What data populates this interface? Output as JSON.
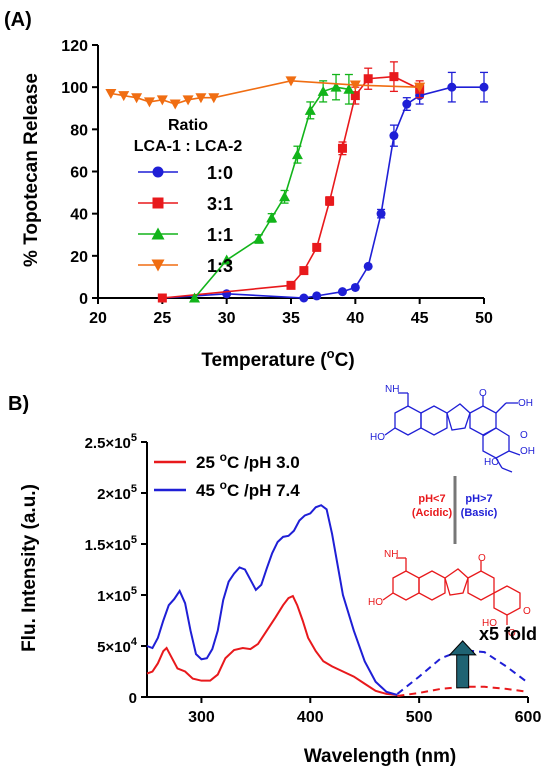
{
  "chart_data": [
    {
      "panel_label": "(A)",
      "type": "line",
      "xlabel": "Temperature (",
      "xlabel_unit_sup": "o",
      "xlabel_unit_end": "C)",
      "ylabel": "% Topotecan Release",
      "xlim": [
        20,
        50
      ],
      "ylim": [
        0,
        120
      ],
      "xticks": [
        20,
        25,
        30,
        35,
        40,
        45,
        50
      ],
      "yticks": [
        0,
        20,
        40,
        60,
        80,
        100,
        120
      ],
      "legend_title_1": "Ratio",
      "legend_title_2": "LCA-1 : LCA-2",
      "series": [
        {
          "name": "1:0",
          "color": "#1f1fd6",
          "marker": "circle",
          "x": [
            25,
            30,
            36,
            37,
            39,
            40,
            41,
            42,
            43,
            44,
            45,
            47.5,
            50
          ],
          "y": [
            0,
            2,
            0,
            1,
            3,
            5,
            15,
            40,
            77,
            92,
            96,
            100,
            100
          ],
          "err": [
            0,
            0,
            0,
            0,
            0,
            0,
            0,
            2,
            5,
            3,
            4,
            7,
            7
          ]
        },
        {
          "name": "3:1",
          "color": "#e8191c",
          "marker": "square",
          "x": [
            25,
            35,
            36,
            37,
            38,
            39,
            40,
            41,
            43,
            45
          ],
          "y": [
            0,
            6,
            13,
            24,
            46,
            71,
            96,
            104,
            105,
            99
          ],
          "err": [
            0,
            0,
            0,
            0,
            2,
            3,
            4,
            5,
            7,
            4
          ]
        },
        {
          "name": "1:1",
          "color": "#12b41a",
          "marker": "triangle-up",
          "x": [
            27.5,
            30,
            32.5,
            33.5,
            34.5,
            35.5,
            36.5,
            37.5,
            38.5,
            39.5
          ],
          "y": [
            0,
            18,
            28,
            38,
            48,
            68,
            89,
            98,
            100,
            99
          ],
          "err": [
            0,
            0,
            2,
            2,
            3,
            4,
            4,
            5,
            6,
            7
          ]
        },
        {
          "name": "1:3",
          "color": "#f06d12",
          "marker": "triangle-down",
          "x": [
            21,
            22,
            23,
            24,
            25,
            26,
            27,
            28,
            29,
            35,
            40,
            45
          ],
          "y": [
            97,
            96,
            95,
            93,
            94,
            92,
            94,
            95,
            95,
            103,
            101,
            100
          ],
          "err": [
            0,
            0,
            0,
            0,
            0,
            0,
            0,
            0,
            0,
            0,
            0,
            0
          ]
        }
      ]
    },
    {
      "panel_label": "B)",
      "type": "line",
      "xlabel": "Wavelength (nm)",
      "ylabel": "Flu. Intensity (a.u.)",
      "xlim": [
        250,
        600
      ],
      "ylim": [
        0,
        250000
      ],
      "xticks": [
        300,
        400,
        500,
        600
      ],
      "yticks": [
        0,
        50000,
        100000,
        150000,
        200000,
        250000
      ],
      "ytick_labels": [
        {
          "mant": "0",
          "exp": ""
        },
        {
          "mant": "5×10",
          "exp": "4"
        },
        {
          "mant": "1×10",
          "exp": "5"
        },
        {
          "mant": "1.5×10",
          "exp": "5"
        },
        {
          "mant": "2×10",
          "exp": "5"
        },
        {
          "mant": "2.5×10",
          "exp": "5"
        }
      ],
      "series": [
        {
          "name_pre": "25 ",
          "name_sup": "o",
          "name_post": "C /pH 3.0",
          "color": "#e8191c",
          "x": [
            250,
            255,
            260,
            265,
            268,
            272,
            278,
            285,
            292,
            300,
            308,
            315,
            322,
            330,
            338,
            345,
            352,
            360,
            368,
            375,
            380,
            384,
            388,
            393,
            398,
            405,
            412,
            420,
            430,
            440,
            450,
            460,
            470,
            480
          ],
          "y": [
            23000,
            25000,
            33000,
            45000,
            48000,
            40000,
            28000,
            25000,
            18000,
            16000,
            16000,
            22000,
            38000,
            46000,
            48000,
            47000,
            52000,
            65000,
            78000,
            90000,
            97000,
            99000,
            90000,
            75000,
            58000,
            45000,
            35000,
            30000,
            25000,
            20000,
            13000,
            6000,
            3000,
            2000
          ]
        },
        {
          "name_pre": "45 ",
          "name_sup": "o",
          "name_post": "C /pH 7.4",
          "color": "#1f1fd6",
          "x": [
            250,
            255,
            260,
            265,
            270,
            275,
            280,
            285,
            290,
            295,
            300,
            305,
            310,
            315,
            320,
            325,
            330,
            335,
            340,
            345,
            350,
            355,
            360,
            365,
            370,
            375,
            380,
            385,
            390,
            395,
            400,
            405,
            410,
            415,
            420,
            425,
            430,
            440,
            450,
            460,
            470,
            480
          ],
          "y": [
            50000,
            48000,
            58000,
            75000,
            90000,
            96000,
            104000,
            92000,
            65000,
            42000,
            37000,
            38000,
            47000,
            65000,
            95000,
            113000,
            121000,
            127000,
            125000,
            115000,
            105000,
            110000,
            126000,
            141000,
            152000,
            157000,
            158000,
            163000,
            173000,
            178000,
            180000,
            186000,
            188000,
            184000,
            160000,
            130000,
            100000,
            65000,
            35000,
            15000,
            5000,
            2000
          ]
        }
      ],
      "dashed_overlay": [
        {
          "color": "#1f1fd6",
          "x": [
            480,
            500,
            520,
            540,
            560,
            580,
            600
          ],
          "y": [
            3000,
            20000,
            38000,
            46000,
            44000,
            30000,
            14000
          ]
        },
        {
          "color": "#e8191c",
          "x": [
            480,
            500,
            520,
            540,
            560,
            580,
            600
          ],
          "y": [
            1000,
            4000,
            8000,
            10000,
            10000,
            8000,
            5000
          ]
        }
      ],
      "arrow": {
        "x": 540,
        "y_from": 9000,
        "y_to": 55000,
        "label": "x5 fold"
      },
      "structure_labels": {
        "acid_condition": "pH<7",
        "acid_note": "(Acidic)",
        "base_condition": "pH>7",
        "base_note": "(Basic)"
      }
    }
  ]
}
